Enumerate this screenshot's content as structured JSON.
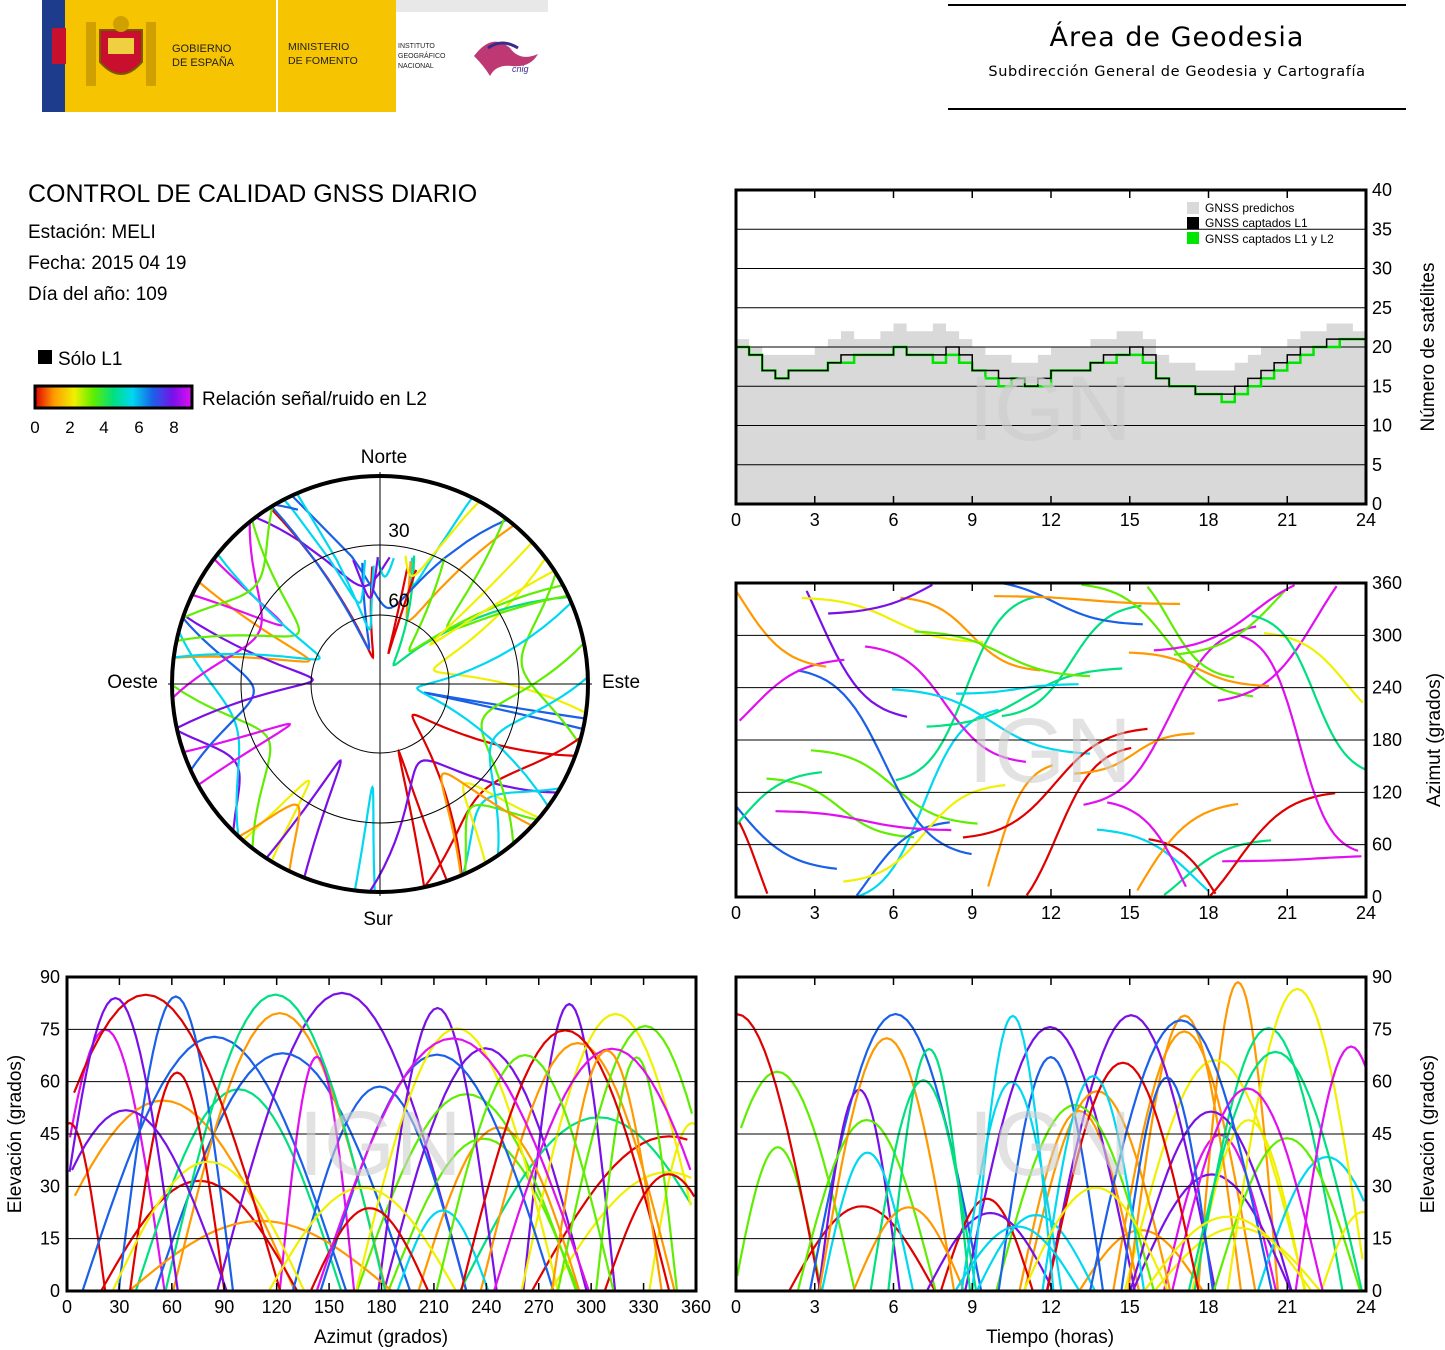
{
  "header": {
    "logo": {
      "gov_line1": "GOBIERNO",
      "gov_line2": "DE ESPAÑA",
      "min_line1": "MINISTERIO",
      "min_line2": "DE FOMENTO",
      "inst_line1": "INSTITUTO",
      "inst_line2": "GEOGRÁFICO",
      "inst_line3": "NACIONAL",
      "cnig": "cnig"
    },
    "area_title": "Área de Geodesia",
    "area_subtitle": "Subdirección General de Geodesia y Cartografía"
  },
  "info": {
    "title": "CONTROL DE CALIDAD GNSS DIARIO",
    "station": "Estación: MELI",
    "date": "Fecha: 2015 04 19",
    "doy": "Día del año: 109"
  },
  "legend": {
    "l1_only": "Sólo L1",
    "snr_label": "Relación señal/ruido en L2",
    "snr_ticks": [
      "0",
      "2",
      "4",
      "6",
      "8"
    ]
  },
  "watermark": "IGN",
  "colors": {
    "predicted": "#d9d9d9",
    "l1": "#000000",
    "l1l2": "#00e600",
    "snr_scale": [
      "#e00000",
      "#ff9900",
      "#f0f000",
      "#60ee00",
      "#00e080",
      "#00d8f0",
      "#1a60e8",
      "#7a10e8",
      "#e010f0"
    ]
  },
  "chart_data": [
    {
      "id": "skyplot",
      "type": "scatter",
      "projection": "polar",
      "directions": {
        "north": "Norte",
        "south": "Sur",
        "west": "Oeste",
        "east": "Este"
      },
      "ring_labels": [
        "30",
        "60"
      ]
    },
    {
      "id": "satellites",
      "type": "line",
      "ylabel": "Número de satélites",
      "xlim": [
        0,
        24
      ],
      "ylim": [
        0,
        40
      ],
      "xticks": [
        "0",
        "3",
        "6",
        "9",
        "12",
        "15",
        "18",
        "21",
        "24"
      ],
      "yticks": [
        "0",
        "5",
        "10",
        "15",
        "20",
        "25",
        "30",
        "35",
        "40"
      ],
      "legend_position": "top-right",
      "x": [
        0,
        0.5,
        1,
        1.5,
        2,
        2.5,
        3,
        3.5,
        4,
        4.5,
        5,
        5.5,
        6,
        6.5,
        7,
        7.5,
        8,
        8.5,
        9,
        9.5,
        10,
        10.5,
        11,
        11.5,
        12,
        12.5,
        13,
        13.5,
        14,
        14.5,
        15,
        15.5,
        16,
        16.5,
        17,
        17.5,
        18,
        18.5,
        19,
        19.5,
        20,
        20.5,
        21,
        21.5,
        22,
        22.5,
        23,
        23.5,
        24
      ],
      "series": [
        {
          "name": "GNSS predichos",
          "values": [
            21,
            20,
            19,
            19,
            19,
            19,
            20,
            21,
            22,
            21,
            21,
            22,
            23,
            22,
            22,
            23,
            22,
            21,
            20,
            19,
            19,
            18,
            18,
            19,
            20,
            20,
            20,
            21,
            21,
            22,
            22,
            21,
            19,
            18,
            18,
            17,
            17,
            17,
            18,
            19,
            20,
            20,
            21,
            22,
            22,
            23,
            23,
            22,
            22
          ]
        },
        {
          "name": "GNSS captados L1",
          "values": [
            20,
            19,
            17,
            16,
            17,
            17,
            17,
            18,
            19,
            19,
            19,
            19,
            20,
            19,
            19,
            19,
            20,
            19,
            17,
            17,
            16,
            16,
            15,
            16,
            17,
            17,
            17,
            18,
            19,
            19,
            20,
            19,
            16,
            15,
            15,
            14,
            14,
            14,
            15,
            16,
            17,
            18,
            19,
            20,
            20,
            21,
            21,
            21,
            21
          ]
        },
        {
          "name": "GNSS captados L1 y L2",
          "values": [
            20,
            19,
            17,
            16,
            17,
            17,
            17,
            18,
            18,
            19,
            19,
            19,
            20,
            19,
            19,
            18,
            19,
            18,
            17,
            16,
            15,
            16,
            15,
            15,
            17,
            17,
            17,
            18,
            18,
            19,
            19,
            18,
            16,
            15,
            15,
            14,
            14,
            13,
            14,
            15,
            16,
            17,
            18,
            19,
            20,
            20,
            21,
            21,
            20
          ]
        }
      ]
    },
    {
      "id": "azimuth-time",
      "type": "scatter",
      "ylabel": "Azimut (grados)",
      "xlim": [
        0,
        24
      ],
      "ylim": [
        0,
        360
      ],
      "xticks": [
        "0",
        "3",
        "6",
        "9",
        "12",
        "15",
        "18",
        "21",
        "24"
      ],
      "yticks": [
        "0",
        "60",
        "120",
        "180",
        "240",
        "300",
        "360"
      ]
    },
    {
      "id": "elevation-azimuth",
      "type": "scatter",
      "xlabel": "Azimut (grados)",
      "ylabel": "Elevación (grados)",
      "xlim": [
        0,
        360
      ],
      "ylim": [
        0,
        90
      ],
      "xticks": [
        "0",
        "30",
        "60",
        "90",
        "120",
        "150",
        "180",
        "210",
        "240",
        "270",
        "300",
        "330",
        "360"
      ],
      "yticks": [
        "0",
        "15",
        "30",
        "45",
        "60",
        "75",
        "90"
      ]
    },
    {
      "id": "elevation-time",
      "type": "scatter",
      "xlabel": "Tiempo (horas)",
      "ylabel": "Elevación (grados)",
      "xlim": [
        0,
        24
      ],
      "ylim": [
        0,
        90
      ],
      "xticks": [
        "0",
        "3",
        "6",
        "9",
        "12",
        "15",
        "18",
        "21",
        "24"
      ],
      "yticks": [
        "0",
        "15",
        "30",
        "45",
        "60",
        "75",
        "90"
      ]
    }
  ]
}
